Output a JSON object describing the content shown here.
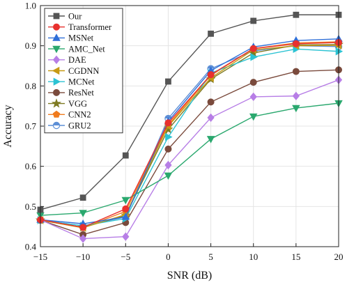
{
  "chart_data": {
    "type": "line",
    "title": "",
    "xlabel": "SNR (dB)",
    "ylabel": "Accuracy",
    "x": [
      -15,
      -10,
      -5,
      0,
      5,
      10,
      15,
      20
    ],
    "xlim": [
      -15,
      20
    ],
    "ylim": [
      0.4,
      1.0
    ],
    "x_ticks": [
      -15,
      -10,
      -5,
      0,
      5,
      10,
      15,
      20
    ],
    "x_tick_labels": [
      "−15",
      "−10",
      "−5",
      "0",
      "5",
      "10",
      "15",
      "20"
    ],
    "y_ticks": [
      0.4,
      0.5,
      0.6,
      0.7,
      0.8,
      0.9,
      1.0
    ],
    "y_tick_labels": [
      "0.4",
      "0.5",
      "0.6",
      "0.7",
      "0.8",
      "0.9",
      "1.0"
    ],
    "grid": true,
    "legend_position": "top-left",
    "series": [
      {
        "name": "Our",
        "color": "#555555",
        "marker": "square",
        "values": [
          0.492,
          0.522,
          0.627,
          0.811,
          0.93,
          0.962,
          0.977,
          0.977
        ]
      },
      {
        "name": "Transformer",
        "color": "#e8312e",
        "marker": "circle",
        "values": [
          0.467,
          0.448,
          0.494,
          0.708,
          0.828,
          0.893,
          0.905,
          0.908
        ]
      },
      {
        "name": "MSNet",
        "color": "#2f6fd8",
        "marker": "triangle-up",
        "values": [
          0.467,
          0.457,
          0.474,
          0.712,
          0.838,
          0.897,
          0.913,
          0.917
        ]
      },
      {
        "name": "AMC_Net",
        "color": "#2aa86e",
        "marker": "triangle-down",
        "values": [
          0.478,
          0.484,
          0.516,
          0.577,
          0.668,
          0.724,
          0.745,
          0.757
        ]
      },
      {
        "name": "DAE",
        "color": "#b77ee6",
        "marker": "diamond",
        "values": [
          0.467,
          0.42,
          0.425,
          0.603,
          0.721,
          0.773,
          0.775,
          0.815
        ]
      },
      {
        "name": "CGDNN",
        "color": "#c79a14",
        "marker": "triangle-left",
        "values": [
          0.466,
          0.447,
          0.48,
          0.7,
          0.82,
          0.89,
          0.9,
          0.901
        ]
      },
      {
        "name": "MCNet",
        "color": "#2cc3d3",
        "marker": "triangle-right",
        "values": [
          0.466,
          0.452,
          0.47,
          0.673,
          0.832,
          0.872,
          0.892,
          0.886
        ]
      },
      {
        "name": "ResNet",
        "color": "#7a4a3c",
        "marker": "circle",
        "values": [
          0.466,
          0.43,
          0.46,
          0.643,
          0.76,
          0.809,
          0.836,
          0.84
        ]
      },
      {
        "name": "VGG",
        "color": "#7e7a22",
        "marker": "star",
        "values": [
          0.466,
          0.448,
          0.478,
          0.692,
          0.817,
          0.882,
          0.902,
          0.903
        ]
      },
      {
        "name": "CNN2",
        "color": "#f07b1e",
        "marker": "pentagon",
        "values": [
          0.466,
          0.447,
          0.488,
          0.703,
          0.826,
          0.893,
          0.907,
          0.91
        ]
      },
      {
        "name": "GRU2",
        "color": "#5d8fd6",
        "marker": "circle-half",
        "values": [
          0.466,
          0.452,
          0.474,
          0.719,
          0.843,
          0.887,
          0.9,
          0.898
        ]
      }
    ]
  }
}
